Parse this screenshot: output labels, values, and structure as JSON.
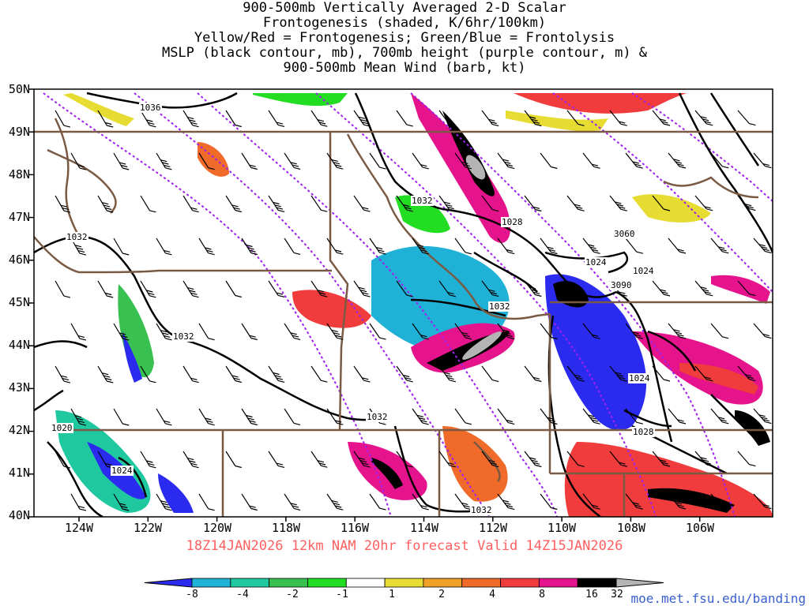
{
  "title": {
    "lines": [
      "900-500mb Vertically Averaged 2-D Scalar",
      "Frontogenesis (shaded, K/6hr/100km)",
      "Yellow/Red = Frontogenesis;  Green/Blue = Frontolysis",
      "MSLP (black contour, mb), 700mb height (purple contour, m) &",
      "900-500mb Mean Wind (barb, kt)"
    ]
  },
  "axes": {
    "lat_labels": [
      "50N",
      "49N",
      "48N",
      "47N",
      "46N",
      "45N",
      "44N",
      "43N",
      "42N",
      "41N",
      "40N"
    ],
    "lon_labels": [
      "124W",
      "122W",
      "120W",
      "118W",
      "116W",
      "114W",
      "112W",
      "110W",
      "108W",
      "106W"
    ]
  },
  "valid_line": "18Z14JAN2026 12km NAM 20hr forecast Valid 14Z15JAN2026",
  "colorbar": {
    "ticks": [
      "-8",
      "-4",
      "-2",
      "-1",
      "1",
      "2",
      "4",
      "8",
      "16",
      "32"
    ],
    "colors": [
      "#2b2bf0",
      "#1fb2d6",
      "#20c8a0",
      "#38c050",
      "#22dd22",
      "#ffffff",
      "#e6dc32",
      "#f0a028",
      "#f06a2a",
      "#f03c3c",
      "#e6148c",
      "#000000",
      "#b4b4b4"
    ]
  },
  "contour_labels": {
    "mslp": [
      "1036",
      "1032",
      "1032",
      "1028",
      "1024",
      "1024",
      "1032",
      "1032",
      "1024",
      "1032",
      "1020",
      "1024",
      "1028",
      "1032"
    ],
    "height_700mb": [
      "3060",
      "3090"
    ]
  },
  "credit": "moe.met.fsu.edu/banding"
}
